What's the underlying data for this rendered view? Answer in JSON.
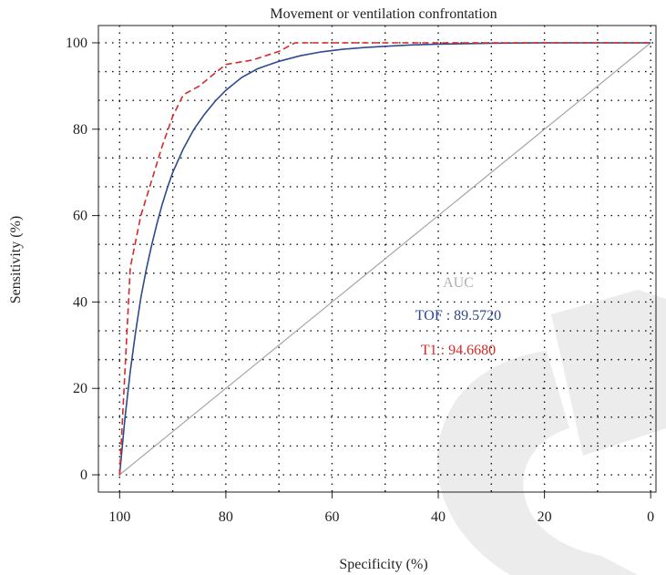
{
  "chart_data": {
    "type": "line",
    "title": "Movement or ventilation confrontation",
    "xlabel": "Specificity (%)",
    "ylabel": "Sensitivity (%)",
    "xlim": [
      104,
      -1
    ],
    "ylim": [
      -4,
      104
    ],
    "x_reversed": true,
    "x_ticks": [
      100,
      80,
      60,
      40,
      20,
      0
    ],
    "y_ticks": [
      0,
      20,
      40,
      60,
      80,
      100
    ],
    "grid": true,
    "grid_x": [
      100,
      90,
      80,
      70,
      60,
      50,
      40,
      30,
      20,
      10,
      0
    ],
    "grid_y": [
      0,
      6.667,
      13.333,
      20,
      26.667,
      33.333,
      40,
      46.667,
      53.333,
      60,
      66.667,
      73.333,
      80,
      86.667,
      93.333,
      100
    ],
    "series": [
      {
        "name": "TOF",
        "color": "#2d4a8c",
        "style": "solid",
        "x": [
          100,
          99,
          98,
          97,
          96,
          95,
          94,
          93,
          92,
          91,
          90,
          88,
          86,
          84,
          82,
          80,
          77,
          74,
          70,
          66,
          62,
          58,
          54,
          50,
          45,
          40,
          35,
          30,
          20,
          10,
          0
        ],
        "y": [
          0,
          13,
          24,
          33,
          41,
          47.5,
          53,
          58,
          62.5,
          66.5,
          70,
          75.5,
          80,
          83.5,
          86.5,
          89,
          92,
          94,
          95.7,
          97,
          97.9,
          98.5,
          98.9,
          99.2,
          99.5,
          99.7,
          99.8,
          99.9,
          100,
          100,
          100
        ]
      },
      {
        "name": "T1",
        "color": "#d62828",
        "style": "dashed",
        "x": [
          100,
          98,
          96,
          94,
          92,
          90,
          88,
          85,
          82,
          80,
          75,
          70,
          67,
          60,
          40,
          20,
          0
        ],
        "y": [
          0,
          48,
          60,
          68,
          76,
          83,
          88,
          90,
          93,
          95,
          96,
          98,
          100,
          100,
          100,
          100,
          100
        ]
      },
      {
        "name": "reference",
        "color": "#a6a6a6",
        "style": "solid",
        "x": [
          100,
          0
        ],
        "y": [
          0,
          100
        ]
      }
    ],
    "legend": {
      "placement": "lower-right",
      "title": "AUC",
      "title_color": "#b0b0b0",
      "entries": [
        {
          "label": "TOF : 89.5720",
          "color": "#2d4a8c"
        },
        {
          "label": "T1 : 94.6680",
          "color": "#d62828"
        }
      ]
    },
    "watermark_color": "#ececec"
  }
}
